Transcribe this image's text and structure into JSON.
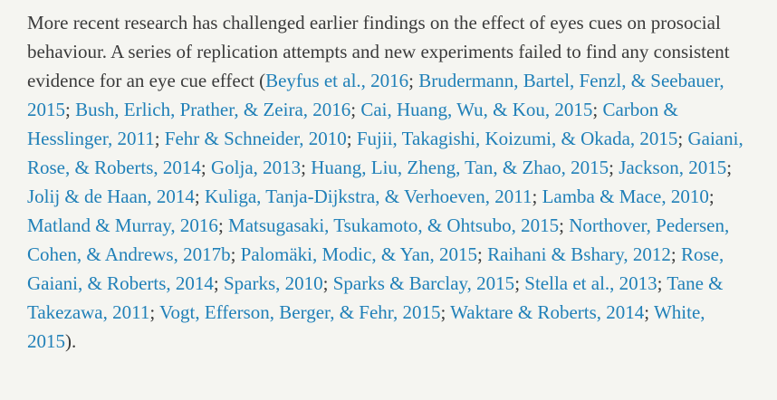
{
  "page": {
    "background_color": "#f5f5f1",
    "text_color": "#3b3b3b",
    "link_color": "#2080b8"
  },
  "paragraph": {
    "intro": "More recent research has challenged earlier findings on the effect of eyes cues on prosocial behaviour. A series of replication attempts and new experiments failed to find any consistent evidence for an eye cue effect (",
    "citations": [
      "Beyfus et al., 2016",
      "Brudermann, Bartel, Fenzl, & Seebauer, 2015",
      "Bush, Erlich, Prather, & Zeira, 2016",
      "Cai, Huang, Wu, & Kou, 2015",
      "Carbon & Hesslinger, 2011",
      "Fehr & Schneider, 2010",
      "Fujii, Takagishi, Koizumi, & Okada, 2015",
      "Gaiani, Rose, & Roberts, 2014",
      "Golja, 2013",
      "Huang, Liu, Zheng, Tan, & Zhao, 2015",
      "Jackson, 2015",
      "Jolij & de Haan, 2014",
      "Kuliga, Tanja-Dijkstra, & Verhoeven, 2011",
      "Lamba & Mace, 2010",
      "Matland & Murray, 2016",
      "Matsugasaki, Tsukamoto, & Ohtsubo, 2015",
      "Northover, Pedersen, Cohen, & Andrews, 2017b",
      "Palomäki, Modic, & Yan, 2015",
      "Raihani & Bshary, 2012",
      "Rose, Gaiani, & Roberts, 2014",
      "Sparks, 2010",
      "Sparks & Barclay, 2015",
      "Stella et al., 2013",
      "Tane & Takezawa, 2011",
      "Vogt, Efferson, Berger, & Fehr, 2015",
      "Waktare & Roberts, 2014",
      "White, 2015"
    ],
    "separator": "; ",
    "closing": ")."
  }
}
